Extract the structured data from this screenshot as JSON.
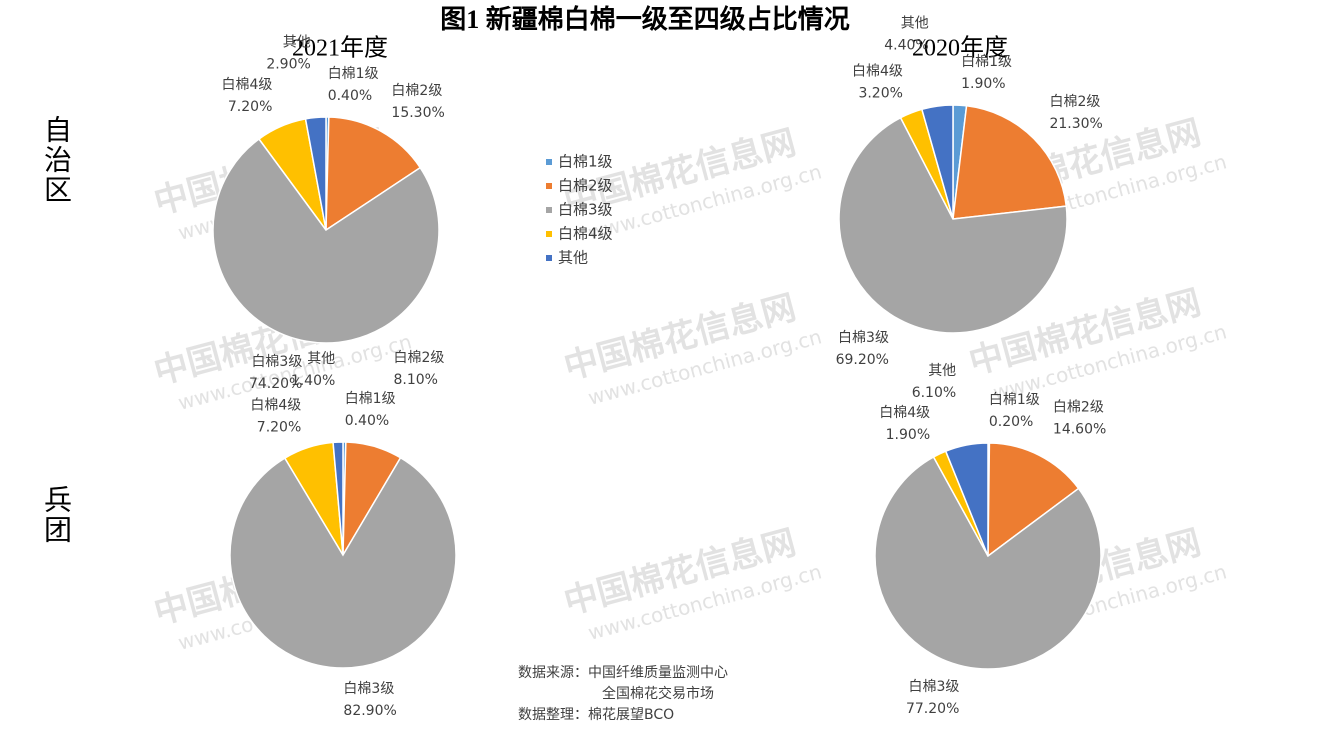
{
  "title": "图1 新疆棉白棉一级至四级占比情况",
  "column_titles": [
    "2021年度",
    "2020年度"
  ],
  "row_labels": [
    "自治区",
    "兵团"
  ],
  "watermark": [
    "中国棉花信息网",
    "www.cottonchina.org.cn"
  ],
  "source": [
    "数据来源：中国纤维质量监测中心",
    "全国棉花交易市场",
    "数据整理：棉花展望BCO"
  ],
  "chart_data": [
    {
      "type": "pie",
      "categories": [
        "白棉1级",
        "白棉2级",
        "白棉3级",
        "白棉4级",
        "其他"
      ],
      "values": [
        0.4,
        15.3,
        74.2,
        7.2,
        2.9
      ],
      "value_labels": [
        "0.40%",
        "15.30%",
        "74.20%",
        "7.20%",
        "2.90%"
      ],
      "colors": [
        "#5b9bd5",
        "#ed7d31",
        "#a5a5a5",
        "#ffc000",
        "#4472c4"
      ]
    },
    {
      "type": "pie",
      "categories": [
        "白棉1级",
        "白棉2级",
        "白棉3级",
        "白棉4级",
        "其他"
      ],
      "values": [
        1.9,
        21.3,
        69.2,
        3.2,
        4.4
      ],
      "value_labels": [
        "1.90%",
        "21.30%",
        "69.20%",
        "3.20%",
        "4.40%"
      ],
      "colors": [
        "#5b9bd5",
        "#ed7d31",
        "#a5a5a5",
        "#ffc000",
        "#4472c4"
      ]
    },
    {
      "type": "pie",
      "categories": [
        "白棉1级",
        "白棉2级",
        "白棉3级",
        "白棉4级",
        "其他"
      ],
      "values": [
        0.4,
        8.1,
        82.9,
        7.2,
        1.4
      ],
      "value_labels": [
        "0.40%",
        "8.10%",
        "82.90%",
        "7.20%",
        "1.40%"
      ],
      "colors": [
        "#5b9bd5",
        "#ed7d31",
        "#a5a5a5",
        "#ffc000",
        "#4472c4"
      ]
    },
    {
      "type": "pie",
      "categories": [
        "白棉1级",
        "白棉2级",
        "白棉3级",
        "白棉4级",
        "其他"
      ],
      "values": [
        0.2,
        14.6,
        77.2,
        1.9,
        6.1
      ],
      "value_labels": [
        "0.20%",
        "14.60%",
        "77.20%",
        "1.90%",
        "6.10%"
      ],
      "colors": [
        "#5b9bd5",
        "#ed7d31",
        "#a5a5a5",
        "#ffc000",
        "#4472c4"
      ]
    }
  ]
}
